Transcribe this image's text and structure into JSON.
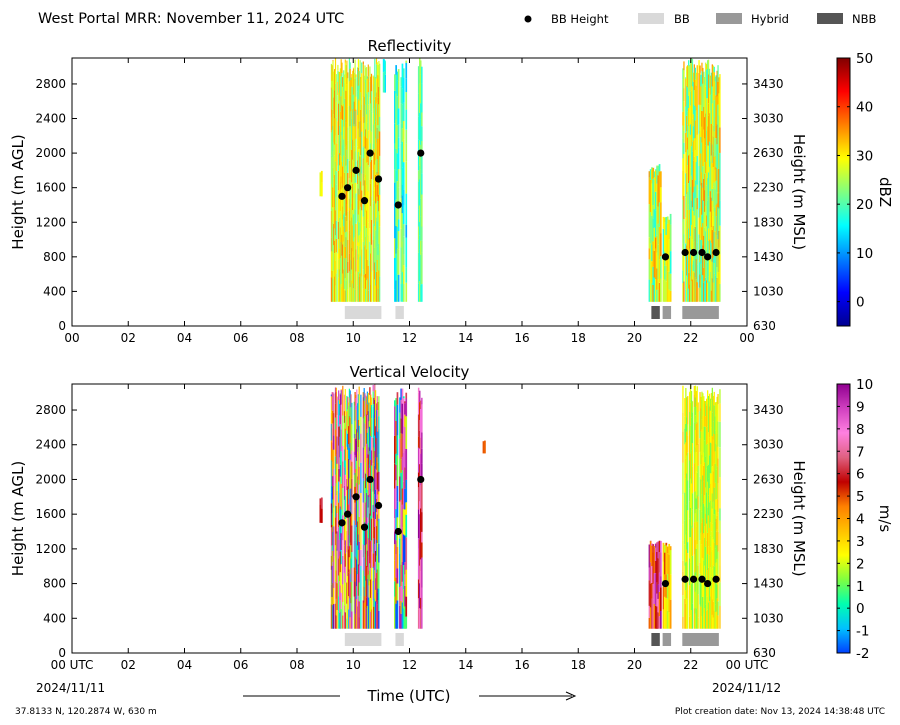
{
  "header": {
    "title": "West Portal MRR:  November 11, 2024 UTC",
    "legend": [
      {
        "label": "BB Height",
        "kind": "dot",
        "color": "#000000"
      },
      {
        "label": "BB",
        "kind": "rect",
        "color": "#d9d9d9"
      },
      {
        "label": "Hybrid",
        "kind": "rect",
        "color": "#999999"
      },
      {
        "label": "NBB",
        "kind": "rect",
        "color": "#555555"
      }
    ]
  },
  "footer": {
    "location": "37.8133 N, 120.2874 W, 630 m",
    "creation": "Plot creation date: Nov 13, 2024 14:38:48 UTC",
    "xaxis_label": "Time (UTC)",
    "start_date": "2024/11/11",
    "end_date": "2024/11/12"
  },
  "chart_data": [
    {
      "type": "heatmap",
      "title": "Reflectivity",
      "ylabel": "Height (m AGL)",
      "y2label": "Height (m MSL)",
      "xlim": [
        0,
        24
      ],
      "ylim": [
        0,
        3100
      ],
      "xticks": [
        "00",
        "02",
        "04",
        "06",
        "08",
        "10",
        "12",
        "14",
        "16",
        "18",
        "20",
        "22",
        "00"
      ],
      "yticks": [
        0,
        400,
        800,
        1200,
        1600,
        2000,
        2400,
        2800
      ],
      "y2ticks": [
        "630",
        "1030",
        "1430",
        "1830",
        "2230",
        "2630",
        "3030",
        "3430"
      ],
      "colorbar": {
        "label": "dBZ",
        "range": [
          -5,
          50
        ],
        "ticks": [
          0,
          10,
          20,
          30,
          40,
          50
        ],
        "colors": [
          "#00008f",
          "#0000ff",
          "#0080ff",
          "#00ffff",
          "#80ff80",
          "#ffff00",
          "#ff8000",
          "#ff0000",
          "#800000"
        ]
      },
      "bb_height": [
        {
          "x": 9.6,
          "y": 1500
        },
        {
          "x": 9.8,
          "y": 1600
        },
        {
          "x": 10.1,
          "y": 1800
        },
        {
          "x": 10.4,
          "y": 1450
        },
        {
          "x": 10.6,
          "y": 2000
        },
        {
          "x": 10.9,
          "y": 1700
        },
        {
          "x": 11.6,
          "y": 1400
        },
        {
          "x": 12.4,
          "y": 2000
        },
        {
          "x": 21.1,
          "y": 800
        },
        {
          "x": 21.8,
          "y": 850
        },
        {
          "x": 22.1,
          "y": 850
        },
        {
          "x": 22.4,
          "y": 850
        },
        {
          "x": 22.6,
          "y": 800
        },
        {
          "x": 22.9,
          "y": 850
        }
      ],
      "bb_type_bars": [
        {
          "type": "BB",
          "x0": 9.7,
          "x1": 11.0
        },
        {
          "type": "BB",
          "x0": 11.5,
          "x1": 11.8
        },
        {
          "type": "NBB",
          "x0": 20.6,
          "x1": 20.9
        },
        {
          "type": "Hybrid",
          "x0": 21.0,
          "x1": 21.3
        },
        {
          "type": "Hybrid",
          "x0": 21.7,
          "x1": 23.0
        }
      ]
    },
    {
      "type": "heatmap",
      "title": "Vertical Velocity",
      "ylabel": "Height (m AGL)",
      "y2label": "Height (m MSL)",
      "xlim": [
        0,
        24
      ],
      "ylim": [
        0,
        3100
      ],
      "xticks": [
        "00 UTC",
        "02",
        "04",
        "06",
        "08",
        "10",
        "12",
        "14",
        "16",
        "18",
        "20",
        "22",
        "00 UTC"
      ],
      "yticks": [
        0,
        400,
        800,
        1200,
        1600,
        2000,
        2400,
        2800
      ],
      "y2ticks": [
        "630",
        "1030",
        "1430",
        "1830",
        "2230",
        "2630",
        "3030",
        "3430"
      ],
      "colorbar": {
        "label": "m/s",
        "range": [
          -2,
          10
        ],
        "ticks": [
          -2,
          -1,
          0,
          1,
          2,
          3,
          4,
          5,
          6,
          7,
          8,
          9,
          10
        ],
        "colors": [
          "#0040ff",
          "#00c0ff",
          "#00ffb0",
          "#80ff40",
          "#ffff00",
          "#ffc000",
          "#ff8000",
          "#c00000",
          "#e06080",
          "#ff80e0",
          "#d040c0",
          "#900090"
        ]
      },
      "bb_height": [
        {
          "x": 9.6,
          "y": 1500
        },
        {
          "x": 9.8,
          "y": 1600
        },
        {
          "x": 10.1,
          "y": 1800
        },
        {
          "x": 10.4,
          "y": 1450
        },
        {
          "x": 10.6,
          "y": 2000
        },
        {
          "x": 10.9,
          "y": 1700
        },
        {
          "x": 11.6,
          "y": 1400
        },
        {
          "x": 12.4,
          "y": 2000
        },
        {
          "x": 21.1,
          "y": 800
        },
        {
          "x": 21.8,
          "y": 850
        },
        {
          "x": 22.1,
          "y": 850
        },
        {
          "x": 22.4,
          "y": 850
        },
        {
          "x": 22.6,
          "y": 800
        },
        {
          "x": 22.9,
          "y": 850
        }
      ],
      "bb_type_bars": [
        {
          "type": "BB",
          "x0": 9.7,
          "x1": 11.0
        },
        {
          "type": "BB",
          "x0": 11.5,
          "x1": 11.8
        },
        {
          "type": "NBB",
          "x0": 20.6,
          "x1": 20.9
        },
        {
          "type": "Hybrid",
          "x0": 21.0,
          "x1": 21.3
        },
        {
          "type": "Hybrid",
          "x0": 21.7,
          "x1": 23.0
        }
      ]
    }
  ]
}
